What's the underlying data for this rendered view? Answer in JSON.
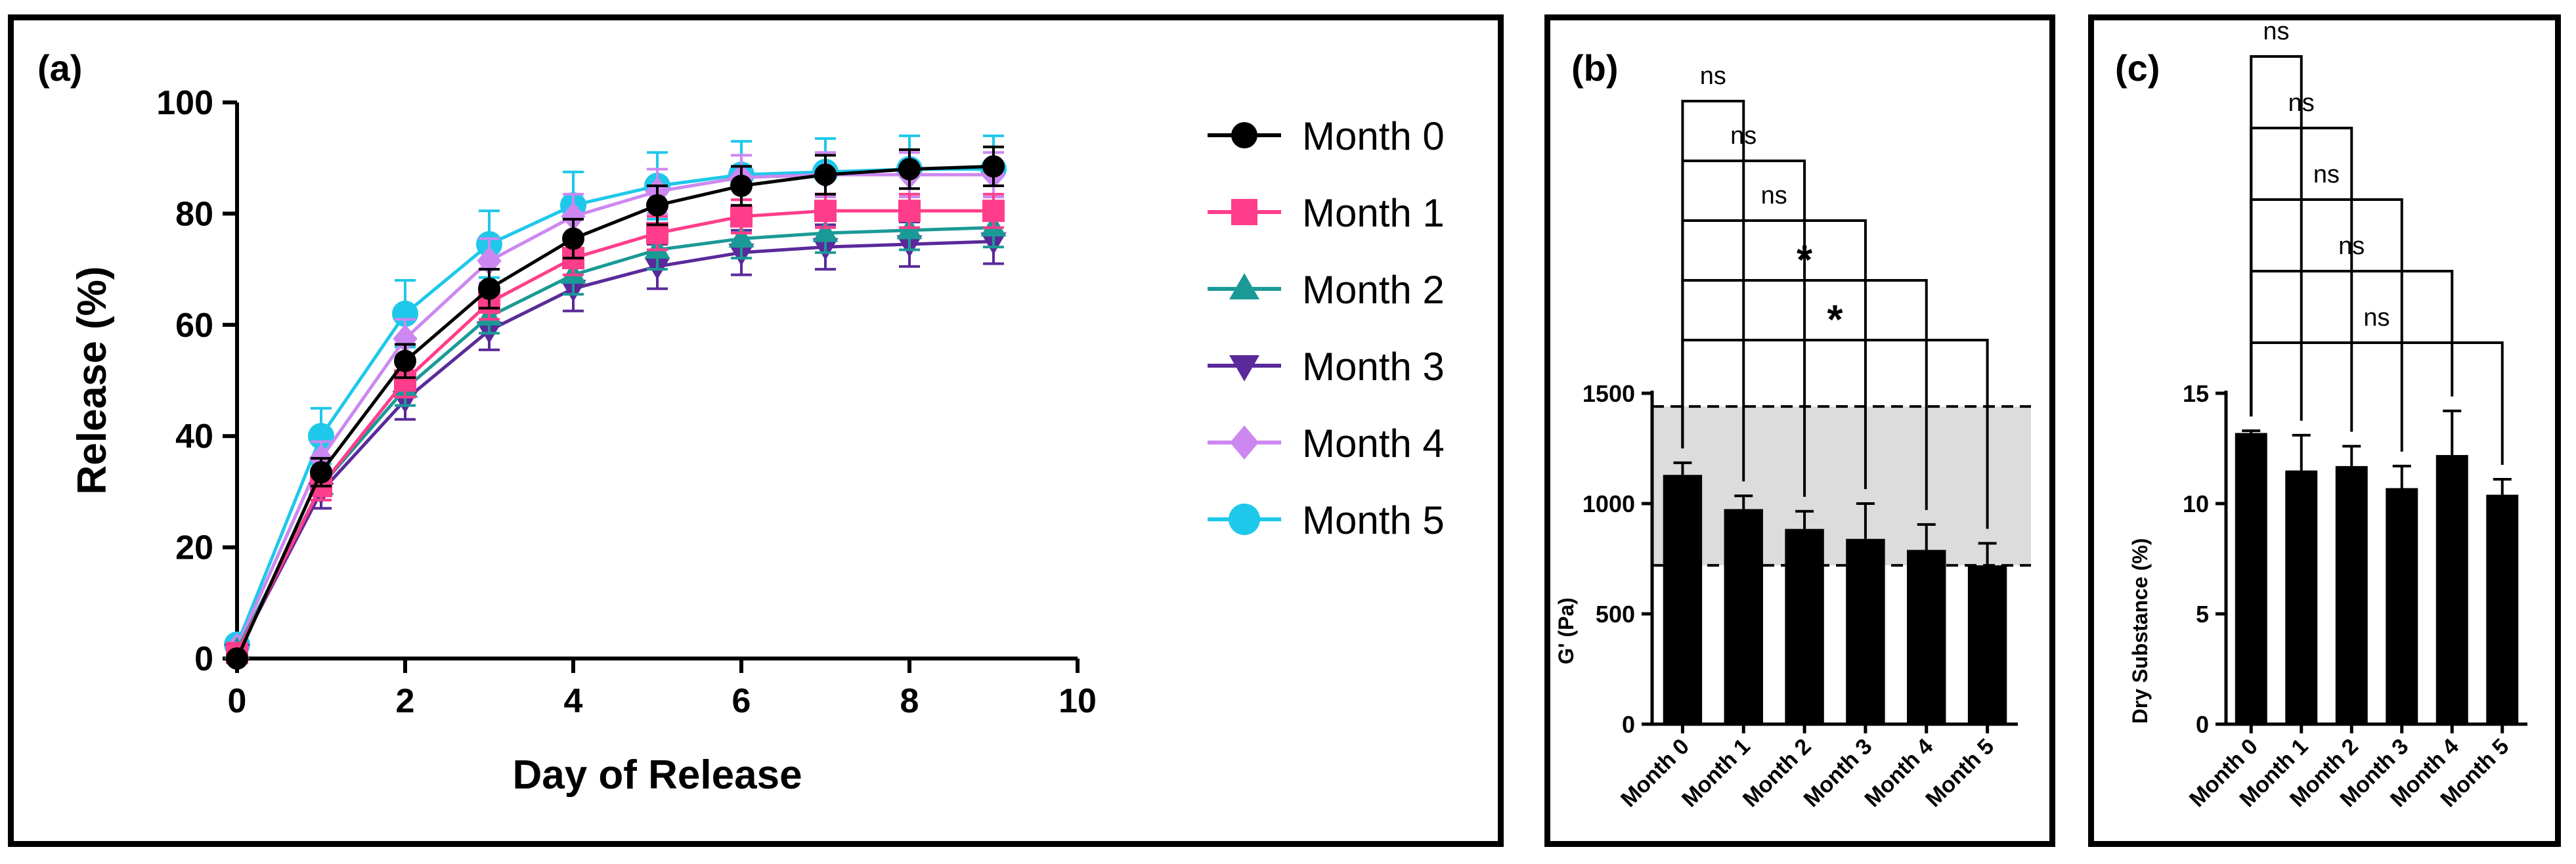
{
  "panels": {
    "a": {
      "label": "(a)"
    },
    "b": {
      "label": "(b)"
    },
    "c": {
      "label": "(c)"
    }
  },
  "chart_data": [
    {
      "id": "a",
      "type": "line",
      "xlabel": "Day of Release",
      "ylabel": "Release (%)",
      "xlim": [
        0,
        10
      ],
      "ylim": [
        0,
        100
      ],
      "xticks": [
        0,
        2,
        4,
        6,
        8,
        10
      ],
      "yticks": [
        0,
        20,
        40,
        60,
        80,
        100
      ],
      "x": [
        0,
        1,
        2,
        3,
        4,
        5,
        6,
        7,
        8,
        9
      ],
      "legend_position": "right",
      "series": [
        {
          "name": "Month 0",
          "color": "#000000",
          "marker": "circle",
          "values": [
            0,
            33.5,
            53.5,
            66.5,
            75.5,
            81.5,
            85,
            87,
            88,
            88.5
          ],
          "errors": [
            0.5,
            2.5,
            3,
            3.5,
            3.5,
            3.5,
            3.5,
            3.5,
            3.5,
            3.5
          ]
        },
        {
          "name": "Month 1",
          "color": "#ff3d8b",
          "marker": "square",
          "values": [
            1,
            31,
            50,
            64,
            72,
            76.5,
            79.5,
            80.5,
            80.5,
            80.5
          ],
          "errors": [
            0.5,
            2.5,
            3,
            3,
            3,
            3,
            3,
            3,
            3,
            3
          ]
        },
        {
          "name": "Month 2",
          "color": "#1a9a96",
          "marker": "triangle-up",
          "values": [
            1.5,
            31,
            48.5,
            61.5,
            69,
            73.5,
            75.5,
            76.5,
            77,
            77.5
          ],
          "errors": [
            0.5,
            2.5,
            3,
            3,
            3.5,
            3.5,
            3.5,
            3.5,
            3.5,
            3.5
          ]
        },
        {
          "name": "Month 3",
          "color": "#5a2a9a",
          "marker": "triangle-down",
          "values": [
            1,
            30,
            46.5,
            59,
            66.5,
            70.5,
            73,
            74,
            74.5,
            75
          ],
          "errors": [
            0.5,
            3,
            3.5,
            3.5,
            4,
            4,
            4,
            4,
            4,
            4
          ]
        },
        {
          "name": "Month 4",
          "color": "#cc88f0",
          "marker": "diamond",
          "values": [
            2,
            36,
            57.5,
            71.5,
            79.5,
            84,
            86.5,
            87,
            87,
            87
          ],
          "errors": [
            0.5,
            3,
            3.5,
            4,
            4,
            4,
            4,
            4,
            4,
            4
          ]
        },
        {
          "name": "Month 5",
          "color": "#1ec8ea",
          "marker": "circle",
          "values": [
            2.5,
            40,
            62,
            74.5,
            81.5,
            85,
            87,
            87.5,
            88,
            88
          ],
          "errors": [
            0.5,
            5,
            6,
            6,
            6,
            6,
            6,
            6,
            6,
            6
          ]
        }
      ]
    },
    {
      "id": "b",
      "type": "bar",
      "ylabel": "G' (Pa)",
      "ylim": [
        0,
        1500
      ],
      "yticks": [
        0,
        500,
        1000,
        1500
      ],
      "categories": [
        "Month 0",
        "Month 1",
        "Month 2",
        "Month 3",
        "Month 4",
        "Month 5"
      ],
      "values": [
        1130,
        975,
        885,
        840,
        790,
        720
      ],
      "errors": [
        55,
        60,
        80,
        160,
        115,
        100
      ],
      "reference_band": [
        720,
        1440
      ],
      "comparisons": [
        {
          "from": 0,
          "to": 1,
          "label": "ns"
        },
        {
          "from": 0,
          "to": 2,
          "label": "ns"
        },
        {
          "from": 0,
          "to": 3,
          "label": "ns"
        },
        {
          "from": 0,
          "to": 4,
          "label": "*"
        },
        {
          "from": 0,
          "to": 5,
          "label": "*"
        }
      ]
    },
    {
      "id": "c",
      "type": "bar",
      "ylabel": "Dry Substance (%)",
      "ylim": [
        0,
        15
      ],
      "yticks": [
        0,
        5,
        10,
        15
      ],
      "categories": [
        "Month 0",
        "Month 1",
        "Month 2",
        "Month 3",
        "Month 4",
        "Month 5"
      ],
      "values": [
        13.2,
        11.5,
        11.7,
        10.7,
        12.2,
        10.4
      ],
      "errors": [
        0.1,
        1.6,
        0.9,
        1.0,
        2.0,
        0.7
      ],
      "comparisons": [
        {
          "from": 0,
          "to": 1,
          "label": "ns"
        },
        {
          "from": 0,
          "to": 2,
          "label": "ns"
        },
        {
          "from": 0,
          "to": 3,
          "label": "ns"
        },
        {
          "from": 0,
          "to": 4,
          "label": "ns"
        },
        {
          "from": 0,
          "to": 5,
          "label": "ns"
        }
      ]
    }
  ]
}
